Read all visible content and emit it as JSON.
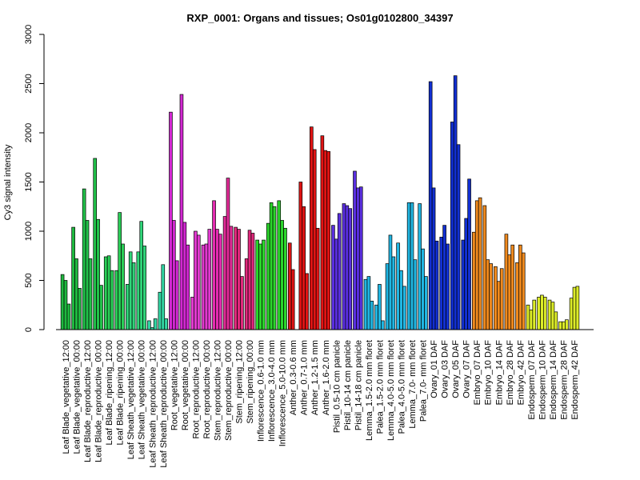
{
  "chart_data": {
    "type": "bar",
    "title": "RXP_0001: Organs and tissues; Os01g0102800_34397",
    "ylabel": "Cy3 signal intensity",
    "xlabel": "",
    "ylim": [
      0,
      3000
    ],
    "yticks": [
      0,
      500,
      1000,
      1500,
      2000,
      2500,
      3000
    ],
    "grid": false,
    "legend": "none",
    "groups": [
      {
        "label": "Leaf Blade_vegetative_12:00",
        "color": "#1fb83f",
        "values": [
          560,
          500,
          260
        ]
      },
      {
        "label": "Leaf Blade_vegetative_00:00",
        "color": "#1fb83f",
        "values": [
          1040,
          720,
          420
        ]
      },
      {
        "label": "Leaf Blade_reproductive_12:00",
        "color": "#22c24a",
        "values": [
          1430,
          1110,
          720
        ]
      },
      {
        "label": "Leaf Blade_reproductive_00:00",
        "color": "#22c24a",
        "values": [
          1740,
          1120,
          450
        ]
      },
      {
        "label": "Leaf Blade_ripening_12:00",
        "color": "#2acf57",
        "values": [
          740,
          750,
          600
        ]
      },
      {
        "label": "Leaf Blade_ripening_00:00",
        "color": "#2acf57",
        "values": [
          600,
          1190,
          870
        ]
      },
      {
        "label": "Leaf Sheath_vegetative_12:00",
        "color": "#31d57a",
        "values": [
          460,
          790,
          680
        ]
      },
      {
        "label": "Leaf Sheath_vegetative_00:00",
        "color": "#31d57a",
        "values": [
          790,
          1100,
          850
        ]
      },
      {
        "label": "Leaf Sheath_reproductive_12:00",
        "color": "#33d7a4",
        "values": [
          90,
          20,
          110
        ]
      },
      {
        "label": "Leaf Sheath_reproductive_00:00",
        "color": "#33d7a4",
        "values": [
          380,
          660,
          110
        ]
      },
      {
        "label": "Root_vegetative_12:00",
        "color": "#d228d2",
        "values": [
          2210,
          1110,
          700
        ]
      },
      {
        "label": "Root_vegetative_00:00",
        "color": "#d228d2",
        "values": [
          2390,
          1090,
          860
        ]
      },
      {
        "label": "Root_reproductive_12:00",
        "color": "#e23ad0",
        "values": [
          330,
          1000,
          960
        ]
      },
      {
        "label": "Root_reproductive_00:00",
        "color": "#e23ad0",
        "values": [
          860,
          870,
          1020
        ]
      },
      {
        "label": "Stem_reproductive_12:00",
        "color": "#e32bb0",
        "values": [
          1310,
          1020,
          970
        ]
      },
      {
        "label": "Stem_reproductive_00:00",
        "color": "#e32b98",
        "values": [
          1150,
          1540,
          1050
        ]
      },
      {
        "label": "Stem_ripening_12:00",
        "color": "#e0287c",
        "values": [
          1040,
          1020,
          540
        ]
      },
      {
        "label": "Stem_ripening_00:00",
        "color": "#e0287c",
        "values": [
          720,
          1010,
          980
        ]
      },
      {
        "label": "Inflorescence_0.6-1.0 mm",
        "color": "#2bd62b",
        "values": [
          910,
          870,
          910
        ]
      },
      {
        "label": "Inflorescence_3.0-4.0 mm",
        "color": "#2bd62b",
        "values": [
          1080,
          1290,
          1250
        ]
      },
      {
        "label": "Inflorescence_5.0-10.0 mm",
        "color": "#2bd62b",
        "values": [
          1310,
          1110,
          1030
        ]
      },
      {
        "label": "Anther_0.3-0.6 mm",
        "color": "#e01414",
        "values": [
          880,
          610
        ]
      },
      {
        "label": "Anther_0.7-1.0 mm",
        "color": "#e01414",
        "values": [
          1500,
          1250,
          570
        ]
      },
      {
        "label": "Anther_1.2-1.5 mm",
        "color": "#e01414",
        "values": [
          2060,
          1830,
          1030
        ]
      },
      {
        "label": "Anther_1.6-2.0 mm",
        "color": "#e01414",
        "values": [
          1970,
          1820,
          1810
        ]
      },
      {
        "label": "Pistil_0.5-10 cm panicle",
        "color": "#5a2fe0",
        "values": [
          1060,
          920,
          1180
        ]
      },
      {
        "label": "Pistil_10-14 cm panicle",
        "color": "#5a2fe0",
        "values": [
          1280,
          1260,
          1230
        ]
      },
      {
        "label": "Pistil_14-18 cm panicle",
        "color": "#5a2fe0",
        "values": [
          1610,
          1440,
          1450
        ]
      },
      {
        "label": "Lemma_1.5-2.0 mm floret",
        "color": "#21b6e2",
        "values": [
          510,
          540,
          290
        ]
      },
      {
        "label": "Palea_1.5-2.0 mm floret",
        "color": "#21b6e2",
        "values": [
          250,
          460,
          90
        ]
      },
      {
        "label": "Lemma_4.0-5.0 mm floret",
        "color": "#21b6e2",
        "values": [
          670,
          960,
          740
        ]
      },
      {
        "label": "Palea_4.0-5.0 mm floret",
        "color": "#21b6e2",
        "values": [
          880,
          600,
          440
        ]
      },
      {
        "label": "Lemma_7.0- mm floret",
        "color": "#21b6e2",
        "values": [
          1290,
          1290,
          710
        ]
      },
      {
        "label": "Palea_7.0- mm floret",
        "color": "#21b6e2",
        "values": [
          1280,
          820,
          540
        ]
      },
      {
        "label": "Ovary_01 DAF",
        "color": "#1230d2",
        "values": [
          2520,
          1440,
          900
        ]
      },
      {
        "label": "Ovary_03 DAF",
        "color": "#1230d2",
        "values": [
          940,
          1060,
          870
        ]
      },
      {
        "label": "Ovary_05 DAF",
        "color": "#1230d2",
        "values": [
          2110,
          2580,
          1880
        ]
      },
      {
        "label": "Ovary_07 DAF",
        "color": "#1230d2",
        "values": [
          910,
          1130,
          1530
        ]
      },
      {
        "label": "Embryo_07 DAF",
        "color": "#f08a1e",
        "values": [
          990,
          1310,
          1340
        ]
      },
      {
        "label": "Embryo_10 DAF",
        "color": "#f08a1e",
        "values": [
          1260,
          710,
          670
        ]
      },
      {
        "label": "Embryo_14 DAF",
        "color": "#f08a1e",
        "values": [
          640,
          490,
          620
        ]
      },
      {
        "label": "Embryo_28 DAF",
        "color": "#f08a1e",
        "values": [
          970,
          760,
          860
        ]
      },
      {
        "label": "Embryo_42 DAF",
        "color": "#f08a1e",
        "values": [
          680,
          860,
          780
        ]
      },
      {
        "label": "Endosperm_07 DAF",
        "color": "#dcec28",
        "values": [
          250,
          200,
          300
        ]
      },
      {
        "label": "Endosperm_10 DAF",
        "color": "#dcec28",
        "values": [
          330,
          350,
          330
        ]
      },
      {
        "label": "Endosperm_14 DAF",
        "color": "#dcec28",
        "values": [
          300,
          280,
          180
        ]
      },
      {
        "label": "Endosperm_28 DAF",
        "color": "#dcec28",
        "values": [
          80,
          80,
          100
        ]
      },
      {
        "label": "Endosperm_42 DAF",
        "color": "#dcec28",
        "values": [
          320,
          430,
          440
        ]
      }
    ]
  }
}
